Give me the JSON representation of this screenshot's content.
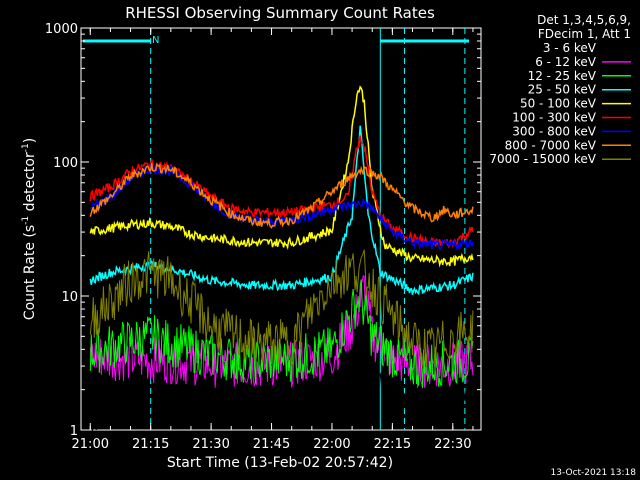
{
  "chart_data": {
    "type": "line",
    "title": "RHESSI Observing Summary Count Rates",
    "xlabel": "Start Time (13-Feb-02 20:57:42)",
    "ylabel_main": "Count Rate (s",
    "ylabel_sup1": "-1",
    "ylabel_mid": " detector",
    "ylabel_sup2": "-1",
    "ylabel_end": ")",
    "yscale": "log",
    "ylim": [
      1,
      1000
    ],
    "xlim": [
      "20:57:42",
      "22:37:00"
    ],
    "x_ticks": [
      "21:00",
      "21:15",
      "21:30",
      "21:45",
      "22:00",
      "22:15",
      "22:30"
    ],
    "y_ticks": [
      "1",
      "10",
      "100",
      "1000"
    ],
    "legend_header": [
      "Det 1,3,4,5,6,9,",
      "FDecim 1, Att 1"
    ],
    "legend_position": "top-right",
    "night_boundaries": [
      "21:15",
      "22:18",
      "22:33"
    ],
    "saa_boundaries": [
      "22:12"
    ],
    "flag_label": "N",
    "timestamp": "13-Oct-2021 13:18",
    "series": [
      {
        "name": "3 - 6 keV",
        "color": "#000000",
        "x": [
          "21:00",
          "21:05",
          "21:10",
          "21:15",
          "21:20",
          "21:25",
          "21:30",
          "21:40",
          "21:50",
          "22:00",
          "22:05",
          "22:08",
          "22:12",
          "22:20",
          "22:30",
          "22:35"
        ],
        "y": [
          1.2,
          1.6,
          2.0,
          2.6,
          2.5,
          2.2,
          2.0,
          1.9,
          1.8,
          2.2,
          3.2,
          4.0,
          2.4,
          1.8,
          2.2,
          2.3
        ]
      },
      {
        "name": "6 - 12 keV",
        "color": "#ff00ff",
        "x": [
          "21:00",
          "21:10",
          "21:20",
          "21:30",
          "21:40",
          "21:50",
          "22:00",
          "22:05",
          "22:07",
          "22:08",
          "22:10",
          "22:15",
          "22:20",
          "22:30",
          "22:35"
        ],
        "y": [
          3.6,
          3.4,
          3.3,
          3.1,
          3.0,
          3.1,
          3.6,
          6.0,
          9.0,
          12.0,
          5.0,
          3.4,
          3.0,
          3.1,
          3.2
        ]
      },
      {
        "name": "12 - 25 keV",
        "color": "#00ff00",
        "x": [
          "21:00",
          "21:10",
          "21:15",
          "21:20",
          "21:30",
          "21:40",
          "21:50",
          "22:00",
          "22:07",
          "22:10",
          "22:15",
          "22:20",
          "22:30",
          "22:35"
        ],
        "y": [
          3.8,
          4.6,
          5.0,
          4.4,
          3.6,
          3.3,
          3.4,
          4.0,
          10.0,
          5.0,
          3.6,
          3.0,
          3.2,
          3.3
        ]
      },
      {
        "name": "25 - 50 keV",
        "color": "#00ffff",
        "x": [
          "21:00",
          "21:05",
          "21:10",
          "21:15",
          "21:20",
          "21:30",
          "21:40",
          "21:50",
          "22:00",
          "22:05",
          "22:07",
          "22:09",
          "22:12",
          "22:20",
          "22:30",
          "22:35"
        ],
        "y": [
          13,
          15,
          16,
          17,
          16,
          13,
          12,
          12,
          14,
          40,
          180,
          40,
          15,
          11,
          12,
          14
        ]
      },
      {
        "name": "50 - 100 keV",
        "color": "#ffff00",
        "x": [
          "21:00",
          "21:05",
          "21:10",
          "21:15",
          "21:20",
          "21:25",
          "21:30",
          "21:40",
          "21:50",
          "22:00",
          "22:04",
          "22:06",
          "22:07",
          "22:08",
          "22:10",
          "22:13",
          "22:20",
          "22:30",
          "22:35"
        ],
        "y": [
          30,
          32,
          34,
          35,
          33,
          29,
          27,
          25,
          25,
          31,
          100,
          300,
          370,
          280,
          60,
          24,
          19,
          18,
          20
        ]
      },
      {
        "name": "100 - 300 keV",
        "color": "#ff0000",
        "x": [
          "21:00",
          "21:05",
          "21:10",
          "21:15",
          "21:20",
          "21:25",
          "21:30",
          "21:35",
          "21:40",
          "21:45",
          "21:50",
          "21:55",
          "22:00",
          "22:04",
          "22:06",
          "22:07",
          "22:08",
          "22:10",
          "22:12",
          "22:15",
          "22:20",
          "22:25",
          "22:30",
          "22:35"
        ],
        "y": [
          55,
          65,
          85,
          97,
          90,
          72,
          55,
          45,
          42,
          42,
          42,
          45,
          48,
          55,
          120,
          155,
          130,
          60,
          40,
          32,
          27,
          25,
          25,
          31
        ]
      },
      {
        "name": "300 - 800 keV",
        "color": "#0000ff",
        "x": [
          "21:00",
          "21:05",
          "21:10",
          "21:15",
          "21:20",
          "21:25",
          "21:30",
          "21:35",
          "21:40",
          "21:45",
          "21:50",
          "21:55",
          "22:00",
          "22:05",
          "22:08",
          "22:10",
          "22:12",
          "22:15",
          "22:20",
          "22:25",
          "22:30",
          "22:35"
        ],
        "y": [
          45,
          55,
          75,
          90,
          85,
          68,
          50,
          40,
          37,
          36,
          37,
          40,
          45,
          48,
          50,
          45,
          38,
          30,
          25,
          24,
          24,
          25
        ]
      },
      {
        "name": "800 - 7000 keV",
        "color": "#ff7f00",
        "x": [
          "21:00",
          "21:05",
          "21:10",
          "21:15",
          "21:20",
          "21:25",
          "21:30",
          "21:35",
          "21:40",
          "21:45",
          "21:50",
          "21:55",
          "22:00",
          "22:05",
          "22:08",
          "22:12",
          "22:15",
          "22:20",
          "22:25",
          "22:28",
          "22:30",
          "22:35"
        ],
        "y": [
          42,
          55,
          78,
          92,
          88,
          70,
          52,
          41,
          36,
          35,
          37,
          45,
          60,
          80,
          88,
          78,
          62,
          45,
          38,
          44,
          40,
          44
        ]
      },
      {
        "name": "7000 - 15000 keV",
        "color": "#808000",
        "x": [
          "21:00",
          "21:05",
          "21:10",
          "21:15",
          "21:20",
          "21:25",
          "21:30",
          "21:40",
          "21:50",
          "21:55",
          "22:00",
          "22:05",
          "22:08",
          "22:10",
          "22:15",
          "22:20",
          "22:25",
          "22:30",
          "22:35"
        ],
        "y": [
          6.5,
          9.0,
          13.0,
          15.0,
          13.0,
          9.0,
          6.0,
          4.5,
          4.5,
          8.0,
          13.0,
          16.0,
          15.0,
          12.0,
          7.0,
          4.5,
          4.0,
          5.0,
          5.5
        ]
      }
    ]
  }
}
